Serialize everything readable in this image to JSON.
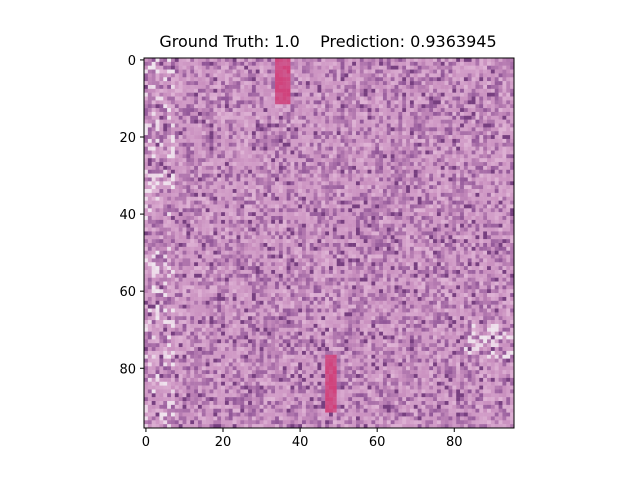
{
  "figure": {
    "title": "Ground Truth: 1.0    Prediction: 0.9363945"
  },
  "chart_data": {
    "type": "heatmap",
    "title": "Ground Truth: 1.0    Prediction: 0.9363945",
    "xlabel": "",
    "ylabel": "",
    "xlim": [
      -0.5,
      95.5
    ],
    "ylim": [
      95.5,
      -0.5
    ],
    "xticks": [
      0,
      20,
      40,
      60,
      80
    ],
    "yticks": [
      0,
      20,
      40,
      60,
      80
    ],
    "grid": false,
    "image_resolution": [
      96,
      96
    ],
    "colors": {
      "base_pink": "#c98fbf",
      "light_pink": "#e2b8d8",
      "purple": "#8a4f93",
      "deep_pink": "#d0407a",
      "white_space": "#f0e6ef"
    }
  }
}
